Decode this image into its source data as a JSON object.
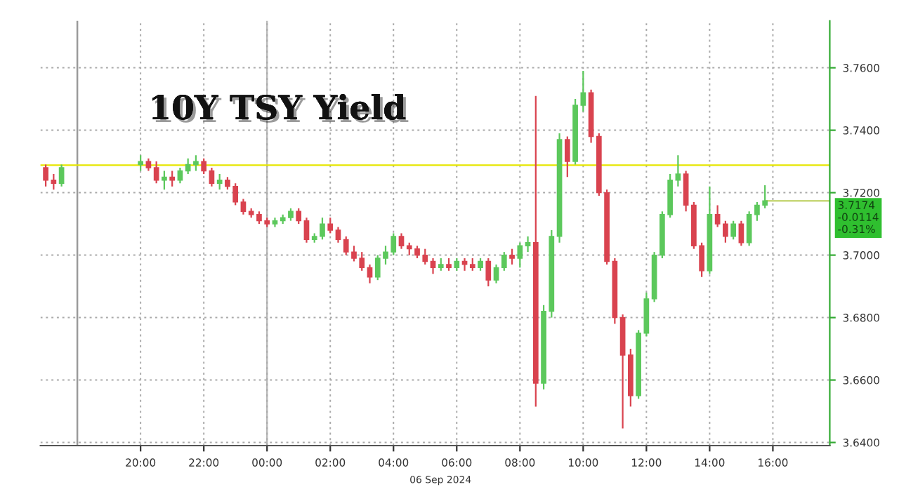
{
  "chart_data": {
    "type": "candlestick",
    "title": "10Y TSY Yield",
    "colors": [
      "#d9434f",
      "#d9434f",
      "#5cc85c",
      "#5cc85c",
      "#d9434f",
      "#d9434f",
      "#5cc85c",
      "#d9434f",
      "#5cc85c",
      "#5cc85c",
      "#5cc85c",
      "#d9434f",
      "#d9434f",
      "#5cc85c",
      "#d9434f",
      "#d9434f",
      "#d9434f",
      "#d9434f",
      "#d9434f",
      "#d9434f",
      "#5cc85c",
      "#5cc85c",
      "#5cc85c",
      "#d9434f",
      "#d9434f",
      "#5cc85c",
      "#5cc85c",
      "#d9434f",
      "#d9434f",
      "#d9434f",
      "#d9434f",
      "#d9434f",
      "#d9434f",
      "#5cc85c",
      "#5cc85c",
      "#5cc85c",
      "#d9434f",
      "#d9434f",
      "#d9434f",
      "#d9434f",
      "#d9434f",
      "#5cc85c",
      "#d9434f",
      "#5cc85c",
      "#d9434f",
      "#d9434f",
      "#5cc85c",
      "#d9434f",
      "#5cc85c",
      "#5cc85c",
      "#d9434f",
      "#5cc85c",
      "#5cc85c",
      "#d9434f",
      "#5cc85c",
      "#5cc85c",
      "#5cc85c",
      "#d9434f",
      "#5cc85c",
      "#5cc85c",
      "#d9434f",
      "#d9434f",
      "#d9434f",
      "#d9434f",
      "#d9434f",
      "#d9434f",
      "#5cc85c",
      "#5cc85c",
      "#5cc85c",
      "#5cc85c",
      "#5cc85c",
      "#5cc85c",
      "#d9434f",
      "#d9434f",
      "#d9434f",
      "#5cc85c",
      "#d9434f",
      "#d9434f",
      "#5cc85c",
      "#d9434f",
      "#5cc85c",
      "#5cc85c",
      "#5cc85c"
    ],
    "x": [
      "2024-09-05T17:00",
      "2024-09-05T17:15",
      "2024-09-05T17:30",
      "2024-09-05T20:00",
      "2024-09-05T20:15",
      "2024-09-05T20:30",
      "2024-09-05T20:45",
      "2024-09-05T21:00",
      "2024-09-05T21:15",
      "2024-09-05T21:30",
      "2024-09-05T21:45",
      "2024-09-05T22:00",
      "2024-09-05T22:15",
      "2024-09-05T22:30",
      "2024-09-05T22:45",
      "2024-09-05T23:00",
      "2024-09-05T23:15",
      "2024-09-05T23:30",
      "2024-09-05T23:45",
      "2024-09-06T00:00",
      "2024-09-06T00:15",
      "2024-09-06T00:30",
      "2024-09-06T00:45",
      "2024-09-06T01:00",
      "2024-09-06T01:15",
      "2024-09-06T01:30",
      "2024-09-06T01:45",
      "2024-09-06T02:00",
      "2024-09-06T02:15",
      "2024-09-06T02:30",
      "2024-09-06T02:45",
      "2024-09-06T03:00",
      "2024-09-06T03:15",
      "2024-09-06T03:30",
      "2024-09-06T03:45",
      "2024-09-06T04:00",
      "2024-09-06T04:15",
      "2024-09-06T04:30",
      "2024-09-06T04:45",
      "2024-09-06T05:00",
      "2024-09-06T05:15",
      "2024-09-06T05:30",
      "2024-09-06T05:45",
      "2024-09-06T06:00",
      "2024-09-06T06:15",
      "2024-09-06T06:30",
      "2024-09-06T06:45",
      "2024-09-06T07:00",
      "2024-09-06T07:15",
      "2024-09-06T07:30",
      "2024-09-06T07:45",
      "2024-09-06T08:00",
      "2024-09-06T08:15",
      "2024-09-06T08:30",
      "2024-09-06T08:45",
      "2024-09-06T09:00",
      "2024-09-06T09:15",
      "2024-09-06T09:30",
      "2024-09-06T09:45",
      "2024-09-06T10:00",
      "2024-09-06T10:15",
      "2024-09-06T10:30",
      "2024-09-06T10:45",
      "2024-09-06T11:00",
      "2024-09-06T11:15",
      "2024-09-06T11:30",
      "2024-09-06T11:45",
      "2024-09-06T12:00",
      "2024-09-06T12:15",
      "2024-09-06T12:30",
      "2024-09-06T12:45",
      "2024-09-06T13:00",
      "2024-09-06T13:15",
      "2024-09-06T13:30",
      "2024-09-06T13:45",
      "2024-09-06T14:00",
      "2024-09-06T14:15",
      "2024-09-06T14:30",
      "2024-09-06T14:45",
      "2024-09-06T15:00",
      "2024-09-06T15:15",
      "2024-09-06T15:30",
      "2024-09-06T15:45"
    ],
    "ohlc": [
      [
        3.728,
        3.729,
        3.722,
        3.724
      ],
      [
        3.724,
        3.726,
        3.721,
        3.723
      ],
      [
        3.723,
        3.729,
        3.722,
        3.728
      ],
      [
        3.729,
        3.732,
        3.727,
        3.73
      ],
      [
        3.73,
        3.731,
        3.727,
        3.728
      ],
      [
        3.728,
        3.73,
        3.723,
        3.724
      ],
      [
        3.724,
        3.727,
        3.721,
        3.725
      ],
      [
        3.725,
        3.727,
        3.722,
        3.724
      ],
      [
        3.724,
        3.728,
        3.723,
        3.727
      ],
      [
        3.727,
        3.731,
        3.726,
        3.729
      ],
      [
        3.729,
        3.732,
        3.727,
        3.73
      ],
      [
        3.73,
        3.731,
        3.726,
        3.727
      ],
      [
        3.727,
        3.728,
        3.722,
        3.723
      ],
      [
        3.723,
        3.726,
        3.721,
        3.724
      ],
      [
        3.724,
        3.725,
        3.721,
        3.722
      ],
      [
        3.722,
        3.723,
        3.716,
        3.717
      ],
      [
        3.717,
        3.718,
        3.713,
        3.714
      ],
      [
        3.714,
        3.715,
        3.712,
        3.713
      ],
      [
        3.713,
        3.714,
        3.71,
        3.711
      ],
      [
        3.711,
        3.712,
        3.709,
        3.71
      ],
      [
        3.71,
        3.712,
        3.709,
        3.711
      ],
      [
        3.711,
        3.713,
        3.71,
        3.712
      ],
      [
        3.712,
        3.715,
        3.711,
        3.714
      ],
      [
        3.714,
        3.715,
        3.71,
        3.711
      ],
      [
        3.711,
        3.712,
        3.704,
        3.705
      ],
      [
        3.705,
        3.707,
        3.704,
        3.706
      ],
      [
        3.706,
        3.712,
        3.705,
        3.71
      ],
      [
        3.71,
        3.712,
        3.707,
        3.708
      ],
      [
        3.708,
        3.709,
        3.704,
        3.705
      ],
      [
        3.705,
        3.706,
        3.7,
        3.701
      ],
      [
        3.701,
        3.703,
        3.698,
        3.699
      ],
      [
        3.699,
        3.701,
        3.695,
        3.696
      ],
      [
        3.696,
        3.697,
        3.691,
        3.693
      ],
      [
        3.693,
        3.7,
        3.692,
        3.699
      ],
      [
        3.699,
        3.703,
        3.697,
        3.701
      ],
      [
        3.701,
        3.707,
        3.7,
        3.706
      ],
      [
        3.706,
        3.707,
        3.702,
        3.703
      ],
      [
        3.703,
        3.704,
        3.7,
        3.702
      ],
      [
        3.702,
        3.703,
        3.699,
        3.7
      ],
      [
        3.7,
        3.702,
        3.697,
        3.698
      ],
      [
        3.698,
        3.699,
        3.694,
        3.696
      ],
      [
        3.696,
        3.699,
        3.695,
        3.697
      ],
      [
        3.697,
        3.699,
        3.695,
        3.696
      ],
      [
        3.696,
        3.699,
        3.695,
        3.698
      ],
      [
        3.698,
        3.699,
        3.695,
        3.697
      ],
      [
        3.697,
        3.699,
        3.695,
        3.696
      ],
      [
        3.696,
        3.699,
        3.695,
        3.698
      ],
      [
        3.698,
        3.699,
        3.69,
        3.692
      ],
      [
        3.692,
        3.697,
        3.691,
        3.696
      ],
      [
        3.696,
        3.701,
        3.695,
        3.7
      ],
      [
        3.7,
        3.702,
        3.697,
        3.699
      ],
      [
        3.699,
        3.704,
        3.696,
        3.703
      ],
      [
        3.703,
        3.706,
        3.701,
        3.704
      ],
      [
        3.704,
        3.751,
        3.6515,
        3.659
      ],
      [
        3.659,
        3.684,
        3.657,
        3.682
      ],
      [
        3.682,
        3.708,
        3.68,
        3.706
      ],
      [
        3.706,
        3.739,
        3.704,
        3.737
      ],
      [
        3.737,
        3.738,
        3.725,
        3.73
      ],
      [
        3.73,
        3.75,
        3.729,
        3.748
      ],
      [
        3.748,
        3.759,
        3.746,
        3.752
      ],
      [
        3.752,
        3.753,
        3.736,
        3.738
      ],
      [
        3.738,
        3.739,
        3.719,
        3.72
      ],
      [
        3.72,
        3.721,
        3.697,
        3.698
      ],
      [
        3.698,
        3.699,
        3.678,
        3.68
      ],
      [
        3.68,
        3.681,
        3.6445,
        3.668
      ],
      [
        3.668,
        3.67,
        3.6515,
        3.655
      ],
      [
        3.655,
        3.676,
        3.654,
        3.675
      ],
      [
        3.675,
        3.688,
        3.674,
        3.686
      ],
      [
        3.686,
        3.701,
        3.685,
        3.7
      ],
      [
        3.7,
        3.714,
        3.699,
        3.713
      ],
      [
        3.713,
        3.726,
        3.712,
        3.724
      ],
      [
        3.724,
        3.732,
        3.722,
        3.726
      ],
      [
        3.726,
        3.727,
        3.714,
        3.716
      ],
      [
        3.716,
        3.717,
        3.702,
        3.703
      ],
      [
        3.703,
        3.704,
        3.693,
        3.695
      ],
      [
        3.695,
        3.722,
        3.694,
        3.713
      ],
      [
        3.713,
        3.716,
        3.709,
        3.71
      ],
      [
        3.71,
        3.711,
        3.704,
        3.706
      ],
      [
        3.706,
        3.711,
        3.705,
        3.71
      ],
      [
        3.71,
        3.711,
        3.703,
        3.704
      ],
      [
        3.704,
        3.714,
        3.703,
        3.713
      ],
      [
        3.713,
        3.717,
        3.711,
        3.716
      ],
      [
        3.716,
        3.7224,
        3.715,
        3.7174
      ]
    ],
    "xlim": [
      "2024-09-05T16:50",
      "2024-09-06T17:48"
    ],
    "ylim": [
      3.639,
      3.775
    ],
    "xticks": [
      {
        "value": "2024-09-05T20:00",
        "label": "20:00"
      },
      {
        "value": "2024-09-05T22:00",
        "label": "22:00"
      },
      {
        "value": "2024-09-06T00:00",
        "label": "00:00"
      },
      {
        "value": "2024-09-06T02:00",
        "label": "02:00"
      },
      {
        "value": "2024-09-06T04:00",
        "label": "04:00"
      },
      {
        "value": "2024-09-06T06:00",
        "label": "06:00"
      },
      {
        "value": "2024-09-06T08:00",
        "label": "08:00"
      },
      {
        "value": "2024-09-06T10:00",
        "label": "10:00"
      },
      {
        "value": "2024-09-06T12:00",
        "label": "12:00"
      },
      {
        "value": "2024-09-06T14:00",
        "label": "14:00"
      },
      {
        "value": "2024-09-06T16:00",
        "label": "16:00"
      }
    ],
    "yticks": [
      {
        "value": 3.64,
        "label": "3.6400"
      },
      {
        "value": 3.66,
        "label": "3.6600"
      },
      {
        "value": 3.68,
        "label": "3.6800"
      },
      {
        "value": 3.7,
        "label": "3.7000"
      },
      {
        "value": 3.72,
        "label": "3.7200"
      },
      {
        "value": 3.74,
        "label": "3.7400"
      },
      {
        "value": 3.76,
        "label": "3.7600"
      }
    ],
    "grid": true,
    "ref_lines": [
      {
        "axis": "y",
        "value": 3.7288,
        "color": "#e6e600"
      },
      {
        "axis": "y",
        "value": 3.7174,
        "color": "#c8d87a",
        "label": "3.7174\n-0.0114\n-0.31%"
      },
      {
        "axis": "x",
        "value": "2024-09-05T18:00",
        "color": "#999999"
      },
      {
        "axis": "x",
        "value": "2024-09-06T00:00",
        "color": "#bbbbbb"
      }
    ],
    "annotations": [
      "06 Sep 2024"
    ]
  }
}
